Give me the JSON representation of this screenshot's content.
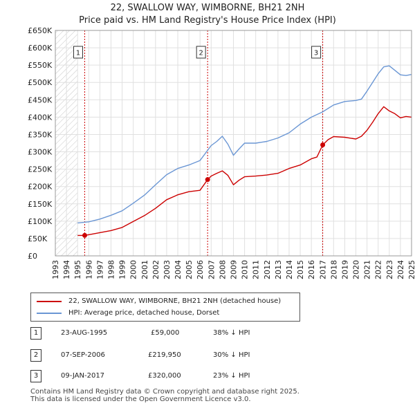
{
  "chart_data": {
    "type": "line",
    "title": "22, SWALLOW WAY, WIMBORNE, BH21 2NH",
    "subtitle": "Price paid vs. HM Land Registry's House Price Index (HPI)",
    "xlim": [
      1993,
      2025
    ],
    "ylim": [
      0,
      650000
    ],
    "y_ticks": [
      0,
      50000,
      100000,
      150000,
      200000,
      250000,
      300000,
      350000,
      400000,
      450000,
      500000,
      550000,
      600000,
      650000
    ],
    "y_tick_labels": [
      "£0",
      "£50K",
      "£100K",
      "£150K",
      "£200K",
      "£250K",
      "£300K",
      "£350K",
      "£400K",
      "£450K",
      "£500K",
      "£550K",
      "£600K",
      "£650K"
    ],
    "x_ticks": [
      1993,
      1994,
      1995,
      1996,
      1997,
      1998,
      1999,
      2000,
      2001,
      2002,
      2003,
      2004,
      2005,
      2006,
      2007,
      2008,
      2009,
      2010,
      2011,
      2012,
      2013,
      2014,
      2015,
      2016,
      2017,
      2018,
      2019,
      2020,
      2021,
      2022,
      2023,
      2024,
      2025
    ],
    "x_tick_labels": [
      "1993",
      "1994",
      "1995",
      "1996",
      "1997",
      "1998",
      "1999",
      "2000",
      "2001",
      "2002",
      "2003",
      "2004",
      "2005",
      "2006",
      "2007",
      "2008",
      "2009",
      "2010",
      "2011",
      "2012",
      "2013",
      "2014",
      "2015",
      "2016",
      "2017",
      "2018",
      "2019",
      "2020",
      "2021",
      "2022",
      "2023",
      "2024",
      "2025"
    ],
    "grid": true,
    "hatched_ranges": [
      [
        1993,
        1995.0
      ]
    ],
    "series": [
      {
        "name": "22, SWALLOW WAY, WIMBORNE, BH21 2NH (detached house)",
        "color": "#cc0000",
        "x": [
          1995.0,
          1995.64,
          1996.0,
          1997.0,
          1998.0,
          1999.0,
          2000.0,
          2001.0,
          2002.0,
          2003.0,
          2004.0,
          2005.0,
          2006.0,
          2006.68,
          2007.0,
          2007.5,
          2008.0,
          2008.5,
          2009.0,
          2009.5,
          2010.0,
          2011.0,
          2012.0,
          2013.0,
          2014.0,
          2015.0,
          2016.0,
          2016.5,
          2017.02,
          2017.5,
          2018.0,
          2019.0,
          2020.0,
          2020.5,
          2021.0,
          2021.5,
          2022.0,
          2022.5,
          2023.0,
          2023.5,
          2024.0,
          2024.5,
          2025.0
        ],
        "y": [
          59000,
          59000,
          61000,
          67000,
          73000,
          82000,
          99000,
          116000,
          137000,
          162000,
          176000,
          185000,
          189000,
          219950,
          230000,
          238000,
          245000,
          232000,
          205000,
          218000,
          228000,
          230000,
          233000,
          238000,
          252000,
          262000,
          280000,
          285000,
          320000,
          335000,
          344000,
          342000,
          337000,
          345000,
          362000,
          385000,
          410000,
          430000,
          418000,
          410000,
          398000,
          402000,
          400000
        ]
      },
      {
        "name": "HPI: Average price, detached house, Dorset",
        "color": "#6a96d4",
        "x": [
          1995.0,
          1996.0,
          1997.0,
          1998.0,
          1999.0,
          2000.0,
          2001.0,
          2002.0,
          2003.0,
          2004.0,
          2005.0,
          2006.0,
          2007.0,
          2007.5,
          2008.0,
          2008.5,
          2009.0,
          2009.5,
          2010.0,
          2011.0,
          2012.0,
          2013.0,
          2014.0,
          2015.0,
          2016.0,
          2017.0,
          2018.0,
          2019.0,
          2020.0,
          2020.5,
          2021.0,
          2021.5,
          2022.0,
          2022.5,
          2023.0,
          2023.5,
          2024.0,
          2024.5,
          2025.0
        ],
        "y": [
          95000,
          98000,
          106000,
          117000,
          130000,
          152000,
          175000,
          205000,
          234000,
          252000,
          262000,
          275000,
          318000,
          330000,
          345000,
          322000,
          290000,
          308000,
          325000,
          325000,
          330000,
          340000,
          355000,
          380000,
          400000,
          415000,
          435000,
          445000,
          448000,
          452000,
          475000,
          500000,
          525000,
          545000,
          548000,
          535000,
          522000,
          520000,
          523000
        ]
      }
    ],
    "sales": [
      {
        "label": "1",
        "x": 1995.64,
        "price": 59000
      },
      {
        "label": "2",
        "x": 2006.68,
        "price": 219950
      },
      {
        "label": "3",
        "x": 2017.02,
        "price": 320000
      }
    ]
  },
  "legend": {
    "property": "22, SWALLOW WAY, WIMBORNE, BH21 2NH (detached house)",
    "hpi": "HPI: Average price, detached house, Dorset"
  },
  "transactions": [
    {
      "num": "1",
      "date": "23-AUG-1995",
      "price": "£59,000",
      "hpi": "38% ↓ HPI"
    },
    {
      "num": "2",
      "date": "07-SEP-2006",
      "price": "£219,950",
      "hpi": "30% ↓ HPI"
    },
    {
      "num": "3",
      "date": "09-JAN-2017",
      "price": "£320,000",
      "hpi": "23% ↓ HPI"
    }
  ],
  "footer": {
    "line1": "Contains HM Land Registry data © Crown copyright and database right 2025.",
    "line2": "This data is licensed under the Open Government Licence v3.0."
  }
}
